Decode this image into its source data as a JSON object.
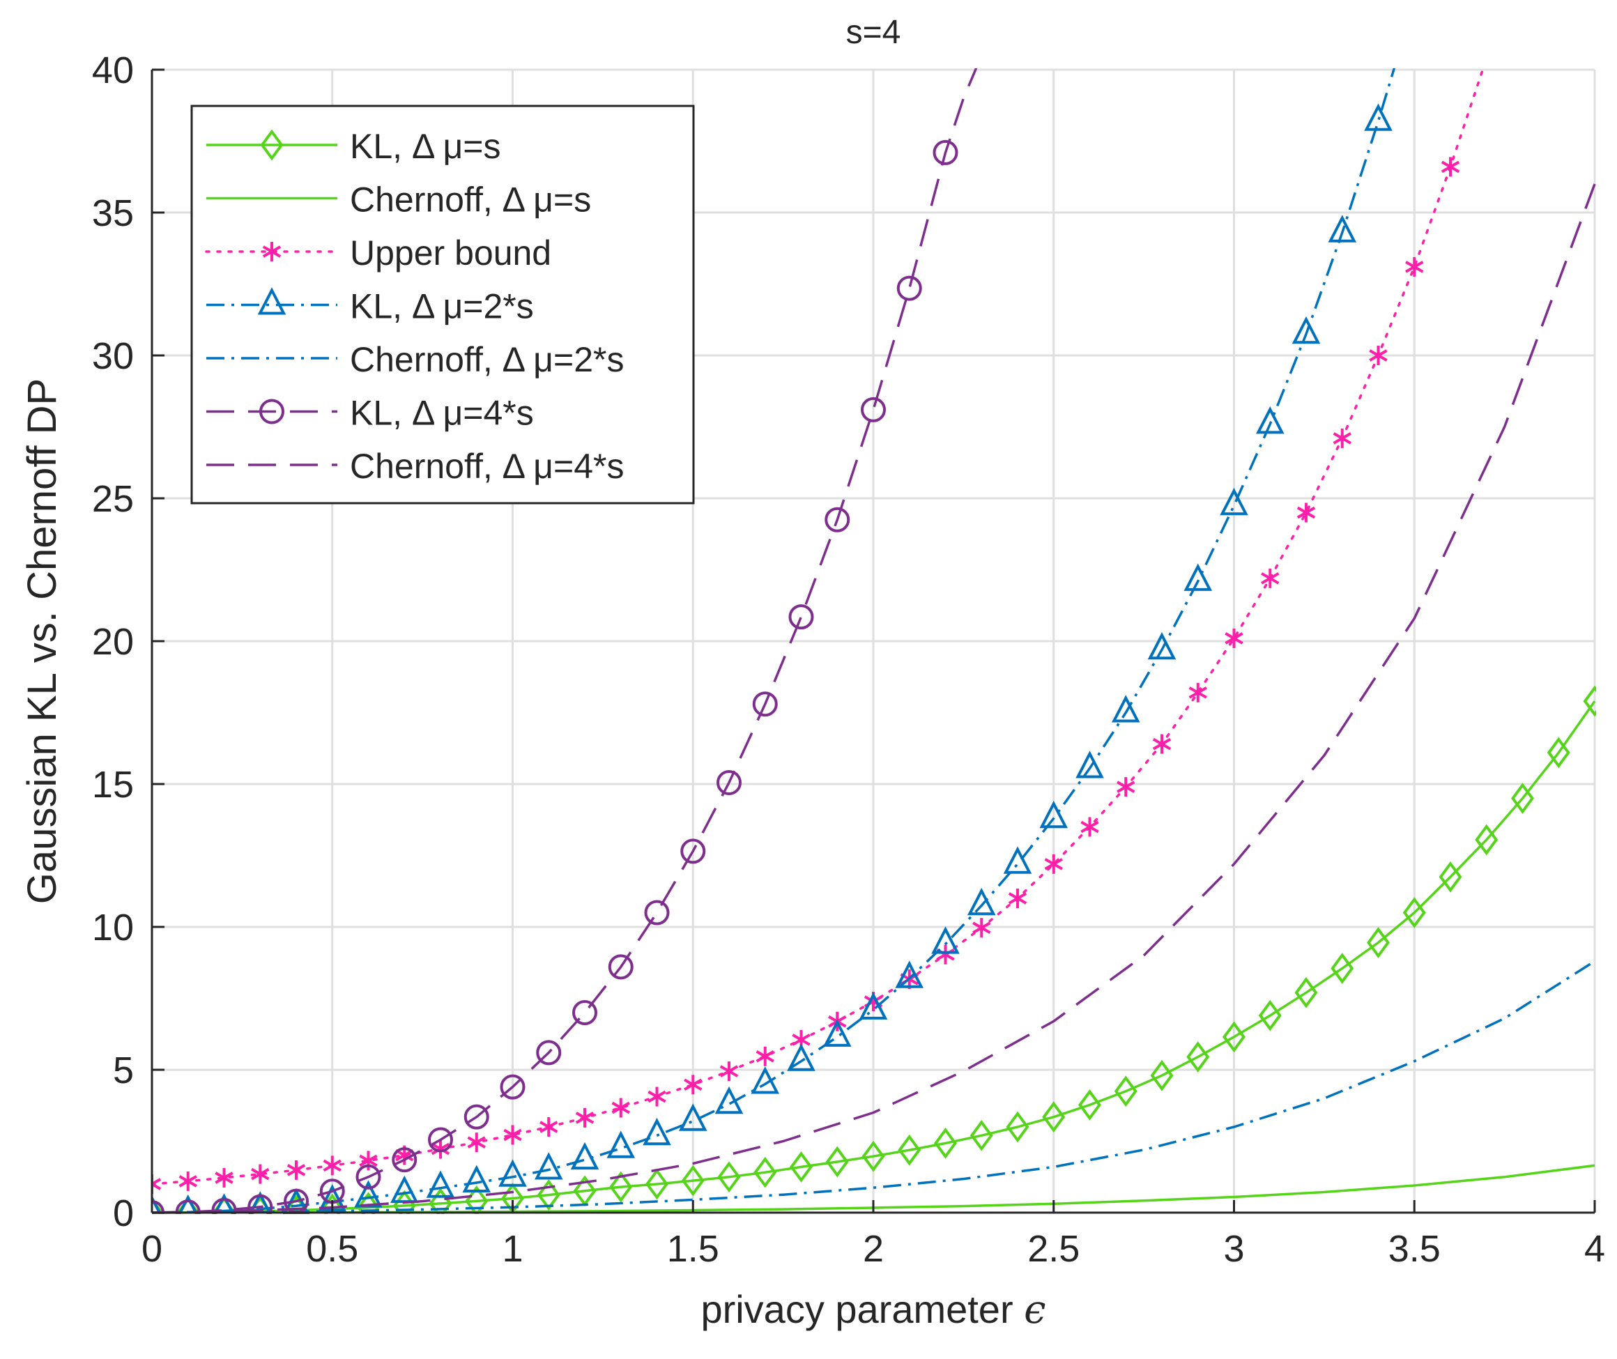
{
  "chart_data": {
    "type": "line",
    "title": "s=4",
    "xlabel": "privacy parameter ",
    "xlabel_symbol": "ϵ",
    "ylabel": "Gaussian KL vs. Chernoff DP",
    "xlim": [
      0,
      4
    ],
    "ylim": [
      0,
      40
    ],
    "grid": true,
    "legend_position": "top-left",
    "xticks": [
      0,
      0.5,
      1,
      1.5,
      2,
      2.5,
      3,
      3.5,
      4
    ],
    "xtick_labels": [
      "0",
      "0.5",
      "1",
      "1.5",
      "2",
      "2.5",
      "3",
      "3.5",
      "4"
    ],
    "yticks": [
      0,
      5,
      10,
      15,
      20,
      25,
      30,
      35,
      40
    ],
    "ytick_labels": [
      "0",
      "5",
      "10",
      "15",
      "20",
      "25",
      "30",
      "35",
      "40"
    ],
    "series": [
      {
        "key": "kl_s",
        "name": "KL, Δ μ=s",
        "color": "#55d41a",
        "dash": "solid",
        "marker": "diamond",
        "x": [
          0,
          0.1,
          0.2,
          0.3,
          0.4,
          0.5,
          0.6,
          0.7,
          0.8,
          0.9,
          1.0,
          1.1,
          1.2,
          1.3,
          1.4,
          1.5,
          1.6,
          1.7,
          1.8,
          1.9,
          2.0,
          2.1,
          2.2,
          2.3,
          2.4,
          2.5,
          2.6,
          2.7,
          2.8,
          2.9,
          3.0,
          3.1,
          3.2,
          3.3,
          3.4,
          3.5,
          3.6,
          3.7,
          3.8,
          3.9,
          4.0
        ],
        "y": [
          0,
          0.005,
          0.02,
          0.045,
          0.08,
          0.125,
          0.18,
          0.245,
          0.32,
          0.405,
          0.5,
          0.62,
          0.76,
          0.9,
          1.0,
          1.12,
          1.25,
          1.41,
          1.6,
          1.78,
          1.97,
          2.19,
          2.43,
          2.7,
          3.0,
          3.35,
          3.77,
          4.25,
          4.8,
          5.45,
          6.15,
          6.9,
          7.7,
          8.55,
          9.45,
          10.5,
          11.75,
          13.05,
          14.5,
          16.1,
          17.9
        ]
      },
      {
        "key": "ch_s",
        "name": "Chernoff, Δ μ=s",
        "color": "#55d41a",
        "dash": "solid",
        "marker": "none",
        "x": [
          0,
          0.25,
          0.5,
          0.75,
          1.0,
          1.25,
          1.5,
          1.75,
          2.0,
          2.25,
          2.5,
          2.75,
          3.0,
          3.25,
          3.5,
          3.75,
          4.0
        ],
        "y": [
          0,
          0.004,
          0.01,
          0.02,
          0.035,
          0.055,
          0.085,
          0.12,
          0.17,
          0.23,
          0.31,
          0.42,
          0.55,
          0.72,
          0.95,
          1.25,
          1.65
        ]
      },
      {
        "key": "ub",
        "name": "Upper bound",
        "color": "#ff1fa8",
        "dash": "dotted",
        "marker": "asterisk",
        "x": [
          0,
          0.1,
          0.2,
          0.3,
          0.4,
          0.5,
          0.6,
          0.7,
          0.8,
          0.9,
          1.0,
          1.1,
          1.2,
          1.3,
          1.4,
          1.5,
          1.6,
          1.7,
          1.8,
          1.9,
          2.0,
          2.1,
          2.2,
          2.3,
          2.4,
          2.5,
          2.6,
          2.7,
          2.8,
          2.9,
          3.0,
          3.1,
          3.2,
          3.3,
          3.4,
          3.5,
          3.6,
          3.7
        ],
        "y": [
          1.0,
          1.1,
          1.22,
          1.35,
          1.49,
          1.65,
          1.82,
          2.01,
          2.23,
          2.46,
          2.72,
          3.0,
          3.32,
          3.67,
          4.06,
          4.48,
          4.95,
          5.47,
          6.05,
          6.69,
          7.39,
          8.17,
          9.03,
          9.97,
          11.0,
          12.2,
          13.5,
          14.9,
          16.4,
          18.2,
          20.1,
          22.2,
          24.5,
          27.1,
          30.0,
          33.1,
          36.6,
          40.4
        ]
      },
      {
        "key": "kl_2s",
        "name": "KL, Δ μ=2*s",
        "color": "#0072bd",
        "dash": "dashdot",
        "marker": "triangle",
        "x": [
          0,
          0.1,
          0.2,
          0.3,
          0.4,
          0.5,
          0.6,
          0.7,
          0.8,
          0.9,
          1.0,
          1.1,
          1.2,
          1.3,
          1.4,
          1.5,
          1.6,
          1.7,
          1.8,
          1.9,
          2.0,
          2.1,
          2.2,
          2.3,
          2.4,
          2.5,
          2.6,
          2.7,
          2.8,
          2.9,
          3.0,
          3.1,
          3.2,
          3.3,
          3.4,
          3.45
        ],
        "y": [
          0,
          0.02,
          0.06,
          0.13,
          0.24,
          0.38,
          0.52,
          0.68,
          0.86,
          1.05,
          1.25,
          1.5,
          1.85,
          2.25,
          2.7,
          3.2,
          3.8,
          4.5,
          5.3,
          6.15,
          7.1,
          8.2,
          9.4,
          10.75,
          12.2,
          13.8,
          15.55,
          17.5,
          19.7,
          22.1,
          24.75,
          27.6,
          30.75,
          34.3,
          38.2,
          40.3
        ]
      },
      {
        "key": "ch_2s",
        "name": "Chernoff, Δ μ=2*s",
        "color": "#0072bd",
        "dash": "dashdot",
        "marker": "none",
        "x": [
          0,
          0.25,
          0.5,
          0.75,
          1.0,
          1.25,
          1.5,
          1.75,
          2.0,
          2.25,
          2.5,
          2.75,
          3.0,
          3.25,
          3.5,
          3.75,
          4.0
        ],
        "y": [
          0,
          0.02,
          0.05,
          0.11,
          0.19,
          0.3,
          0.45,
          0.63,
          0.87,
          1.18,
          1.6,
          2.2,
          3.0,
          4.0,
          5.3,
          6.8,
          8.8
        ]
      },
      {
        "key": "kl_4s",
        "name": "KL, Δ μ=4*s",
        "color": "#7e2f8e",
        "dash": "dashed",
        "marker": "circle",
        "x": [
          0,
          0.1,
          0.2,
          0.3,
          0.4,
          0.5,
          0.6,
          0.7,
          0.8,
          0.9,
          1.0,
          1.1,
          1.2,
          1.3,
          1.4,
          1.5,
          1.6,
          1.7,
          1.8,
          1.9,
          2.0,
          2.1,
          2.2,
          2.25,
          2.3
        ],
        "y": [
          0,
          0.02,
          0.08,
          0.2,
          0.4,
          0.75,
          1.25,
          1.85,
          2.55,
          3.35,
          4.4,
          5.6,
          7.0,
          8.6,
          10.5,
          12.65,
          15.05,
          17.8,
          20.85,
          24.25,
          28.1,
          32.35,
          37.1,
          39.0,
          40.5
        ]
      },
      {
        "key": "ch_4s",
        "name": "Chernoff, Δ μ=4*s",
        "color": "#7e2f8e",
        "dash": "dashed",
        "marker": "none",
        "x": [
          0,
          0.25,
          0.5,
          0.75,
          1.0,
          1.25,
          1.5,
          1.75,
          2.0,
          2.25,
          2.5,
          2.75,
          3.0,
          3.25,
          3.5,
          3.75,
          4.0
        ],
        "y": [
          0,
          0.06,
          0.18,
          0.4,
          0.72,
          1.15,
          1.72,
          2.5,
          3.5,
          4.95,
          6.7,
          9.0,
          12.2,
          16.0,
          20.8,
          27.5,
          36.0
        ]
      }
    ]
  }
}
